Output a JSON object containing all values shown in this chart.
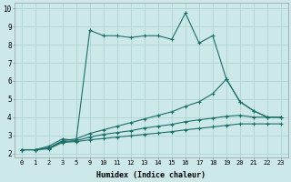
{
  "xlabel": "Humidex (Indice chaleur)",
  "ylabel": "",
  "bg_color": "#cce8e8",
  "grid_color": "#afd4d4",
  "line_color": "#1a6e6a",
  "xtick_labels": [
    "0",
    "1",
    "2",
    "3",
    "5",
    "9",
    "10",
    "11",
    "12",
    "13",
    "14",
    "15",
    "16",
    "17",
    "18",
    "19",
    "20",
    "21",
    "22",
    "23"
  ],
  "ytick_labels": [
    "2",
    "3",
    "4",
    "5",
    "6",
    "7",
    "8",
    "9",
    "10"
  ],
  "ytick_vals": [
    2,
    3,
    4,
    5,
    6,
    7,
    8,
    9,
    10
  ],
  "ylim": [
    1.8,
    10.3
  ],
  "series": [
    {
      "y": [
        2.2,
        2.2,
        2.4,
        2.8,
        2.7,
        8.8,
        8.5,
        8.5,
        8.4,
        8.5,
        8.5,
        8.3,
        9.75,
        8.1,
        8.5,
        6.1,
        4.85,
        4.35,
        4.0,
        4.0
      ]
    },
    {
      "y": [
        2.2,
        2.2,
        2.3,
        2.7,
        2.8,
        3.1,
        3.3,
        3.5,
        3.7,
        3.9,
        4.1,
        4.3,
        4.6,
        4.85,
        5.3,
        6.1,
        4.85,
        4.35,
        4.0,
        4.0
      ]
    },
    {
      "y": [
        2.2,
        2.2,
        2.3,
        2.65,
        2.7,
        2.9,
        3.05,
        3.15,
        3.25,
        3.4,
        3.5,
        3.6,
        3.75,
        3.85,
        3.95,
        4.05,
        4.1,
        4.0,
        4.0,
        4.0
      ]
    },
    {
      "y": [
        2.2,
        2.2,
        2.25,
        2.6,
        2.65,
        2.75,
        2.82,
        2.9,
        2.97,
        3.05,
        3.12,
        3.2,
        3.3,
        3.38,
        3.46,
        3.55,
        3.63,
        3.63,
        3.63,
        3.63
      ]
    }
  ]
}
